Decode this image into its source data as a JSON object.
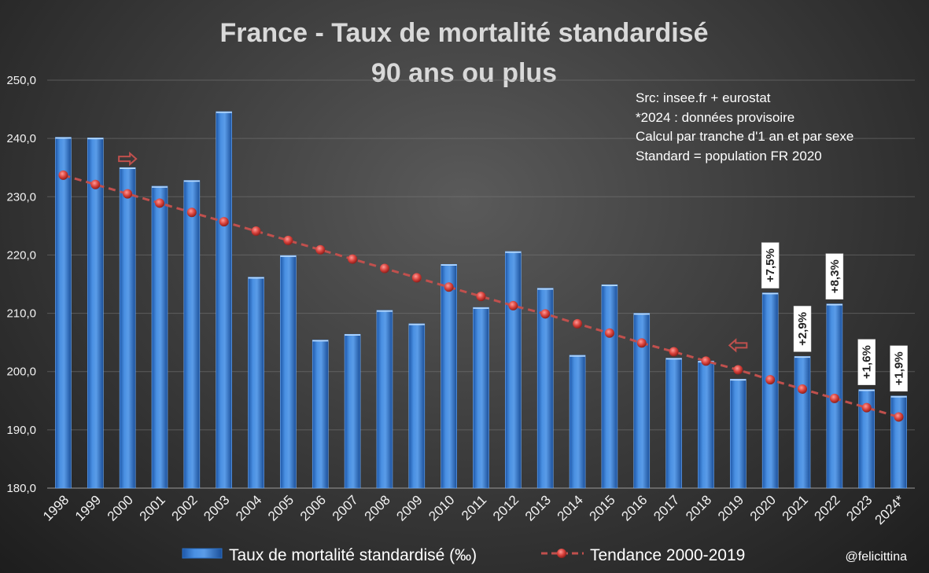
{
  "header": {
    "title_line1": "France - Taux de mortalité standardisé",
    "title_line2": "90 ans ou plus"
  },
  "notes": [
    "Src: insee.fr + eurostat",
    "*2024 : données provisoire",
    "Calcul par tranche d'1 an et par sexe",
    "Standard = population FR 2020"
  ],
  "legend": {
    "bars_label": "Taux de mortalité standardisé (‰)",
    "trend_label": "Tendance 2000-2019"
  },
  "credit": "@felicittina",
  "colors": {
    "bar": "#3f83d6",
    "bar_dark": "#1f5fb4",
    "trend": "#c0504d",
    "grid": "#7a7a7a"
  },
  "chart_data": {
    "type": "bar",
    "title": "France - Taux de mortalité standardisé 90 ans ou plus",
    "xlabel": "",
    "ylabel": "",
    "ylim": [
      180,
      250
    ],
    "yticks": [
      "180,0",
      "190,0",
      "200,0",
      "210,0",
      "220,0",
      "230,0",
      "240,0",
      "250,0"
    ],
    "ytick_values": [
      180,
      190,
      200,
      210,
      220,
      230,
      240,
      250
    ],
    "categories": [
      "1998",
      "1999",
      "2000",
      "2001",
      "2002",
      "2003",
      "2004",
      "2005",
      "2006",
      "2007",
      "2008",
      "2009",
      "2010",
      "2011",
      "2012",
      "2013",
      "2014",
      "2015",
      "2016",
      "2017",
      "2018",
      "2019",
      "2020",
      "2021",
      "2022",
      "2023",
      "2024*"
    ],
    "series": [
      {
        "name": "Taux de mortalité standardisé (‰)",
        "type": "bar",
        "values": [
          240.2,
          240.1,
          235.0,
          231.8,
          232.8,
          244.6,
          216.2,
          219.9,
          205.4,
          206.4,
          210.5,
          208.2,
          218.4,
          211.0,
          220.6,
          214.3,
          202.8,
          214.9,
          210.0,
          202.3,
          201.8,
          198.7,
          213.5,
          202.6,
          211.6,
          196.9,
          195.8
        ]
      },
      {
        "name": "Tendance 2000-2019",
        "type": "line",
        "values": [
          233.7,
          232.1,
          230.5,
          228.9,
          227.3,
          225.7,
          224.1,
          222.5,
          220.9,
          219.3,
          217.7,
          216.1,
          214.5,
          212.9,
          211.3,
          209.9,
          208.2,
          206.6,
          204.9,
          203.4,
          201.8,
          200.3,
          198.6,
          197.0,
          195.4,
          193.8,
          192.2
        ]
      }
    ],
    "annotations": [
      {
        "category": "2020",
        "text": "+7,5%"
      },
      {
        "category": "2021",
        "text": "+2,9%"
      },
      {
        "category": "2022",
        "text": "+8,3%"
      },
      {
        "category": "2023",
        "text": "+1,6%"
      },
      {
        "category": "2024*",
        "text": "+1,9%"
      }
    ],
    "arrows": [
      {
        "category": "2000",
        "direction": "right",
        "value": 236.5
      },
      {
        "category": "2019",
        "direction": "left",
        "value": 204.5
      }
    ]
  }
}
